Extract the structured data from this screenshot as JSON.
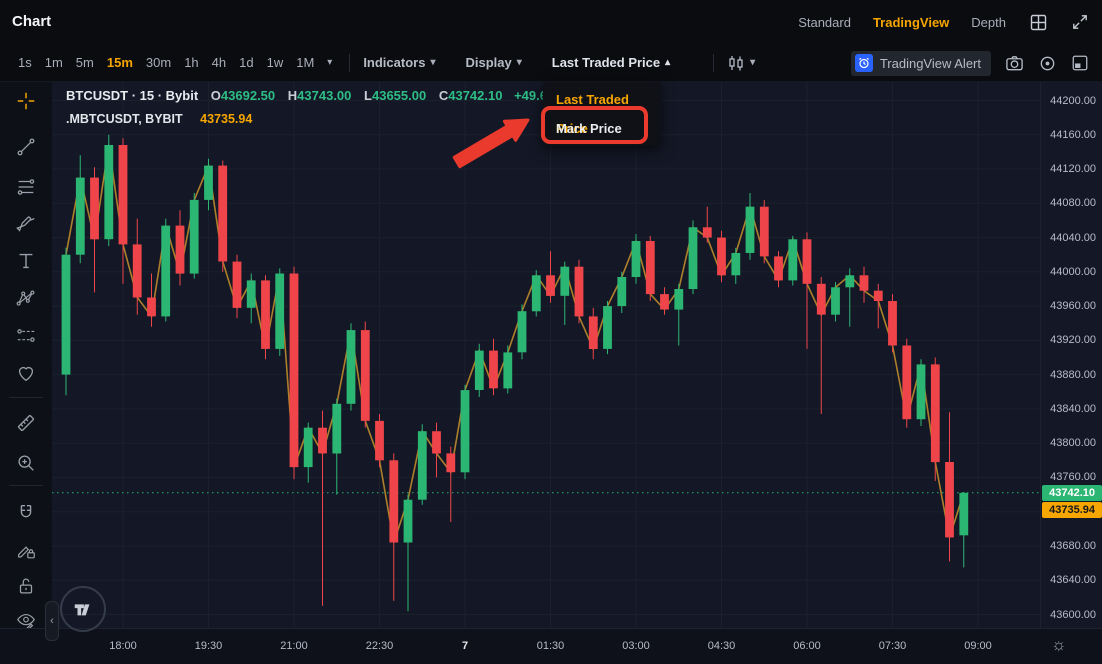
{
  "window": {
    "title": "Chart"
  },
  "top_bar": {
    "tabs": [
      {
        "label": "Standard",
        "active": false
      },
      {
        "label": "TradingView",
        "active": true
      },
      {
        "label": "Depth",
        "active": false
      }
    ],
    "icons": [
      "layout-grid-icon",
      "fullscreen-icon"
    ]
  },
  "toolbar": {
    "timeframes": [
      {
        "label": "1s",
        "active": false
      },
      {
        "label": "1m",
        "active": false
      },
      {
        "label": "5m",
        "active": false
      },
      {
        "label": "15m",
        "active": true
      },
      {
        "label": "30m",
        "active": false
      },
      {
        "label": "1h",
        "active": false
      },
      {
        "label": "4h",
        "active": false
      },
      {
        "label": "1d",
        "active": false
      },
      {
        "label": "1w",
        "active": false
      },
      {
        "label": "1M",
        "active": false
      }
    ],
    "indicators_label": "Indicators",
    "display_label": "Display",
    "price_source_label": "Last Traded Price",
    "chart_type_icon": "candles-icon",
    "alert_button_label": "TradingView Alert",
    "right_icons": [
      "camera-icon",
      "settings-target-icon",
      "popout-icon"
    ]
  },
  "price_source_menu": {
    "items": [
      {
        "label": "Last Traded Price",
        "selected": true,
        "annotated": false
      },
      {
        "label": "Mark Price",
        "selected": false,
        "annotated": true
      }
    ]
  },
  "legend": {
    "line1": {
      "symbol": "BTCUSDT · 15 · Bybit",
      "o_label": "O",
      "o": "43692.50",
      "h_label": "H",
      "h": "43743.00",
      "l_label": "L",
      "l": "43655.00",
      "c_label": "C",
      "c": "43742.10",
      "change": "+49.60 (+"
    },
    "line2": {
      "symbol": ".MBTCUSDT, BYBIT",
      "value": "43735.94"
    }
  },
  "sidebar": {
    "active_tool": "crosshair",
    "tools": [
      "crosshair",
      "trend-line",
      "fib-retracement",
      "brush",
      "text",
      "xabcd-pattern",
      "long-short-position",
      "emoji",
      "measure",
      "zoom-in",
      "magnet",
      "drawing-mode-lock",
      "lock-all-drawings",
      "hide-all-drawings"
    ]
  },
  "price_axis": {
    "ticks": [
      "44200.00",
      "44160.00",
      "44120.00",
      "44080.00",
      "44040.00",
      "44000.00",
      "43960.00",
      "43920.00",
      "43880.00",
      "43840.00",
      "43800.00",
      "43760.00",
      "43680.00",
      "43640.00",
      "43600.00"
    ],
    "last_price_label": "43742.10",
    "mark_price_label": "43735.94"
  },
  "time_axis": {
    "labels": [
      {
        "label": "18:00",
        "i": 4,
        "major": false
      },
      {
        "label": "19:30",
        "i": 10,
        "major": false
      },
      {
        "label": "21:00",
        "i": 16,
        "major": false
      },
      {
        "label": "22:30",
        "i": 22,
        "major": false
      },
      {
        "label": "7",
        "i": 28,
        "major": true
      },
      {
        "label": "01:30",
        "i": 34,
        "major": false
      },
      {
        "label": "03:00",
        "i": 40,
        "major": false
      },
      {
        "label": "04:30",
        "i": 46,
        "major": false
      },
      {
        "label": "06:00",
        "i": 52,
        "major": false
      },
      {
        "label": "07:30",
        "i": 58,
        "major": false
      },
      {
        "label": "09:00",
        "i": 64,
        "major": false
      }
    ]
  },
  "chart_data": {
    "type": "candlestick",
    "symbol": "BTCUSDT",
    "interval": "15m",
    "exchange": "Bybit",
    "title": "BTCUSDT · 15 · Bybit",
    "ylim": [
      43600,
      44200
    ],
    "y_tick_step": 40,
    "grid": true,
    "last_price": 43742.1,
    "mark_price": 43735.94,
    "legend_ohlc": {
      "open": 43692.5,
      "high": 43743.0,
      "low": 43655.0,
      "close": 43742.1,
      "change": "+49.60"
    },
    "overlay_line": {
      "name": ".MBTCUSDT mark price index",
      "value": 43735.94
    },
    "candle_format": [
      "time",
      "open",
      "high",
      "low",
      "close"
    ],
    "candles": [
      [
        "17:00",
        43880,
        44028,
        43856,
        44020
      ],
      [
        "17:15",
        44020,
        44136,
        44010,
        44110
      ],
      [
        "17:30",
        44110,
        44122,
        43976,
        44038
      ],
      [
        "17:45",
        44038,
        44160,
        44030,
        44148
      ],
      [
        "18:00",
        44148,
        44156,
        43986,
        44032
      ],
      [
        "18:15",
        44032,
        44062,
        43950,
        43970
      ],
      [
        "18:30",
        43970,
        43998,
        43936,
        43948
      ],
      [
        "18:45",
        43948,
        44062,
        43942,
        44054
      ],
      [
        "19:00",
        44054,
        44072,
        43984,
        43998
      ],
      [
        "19:15",
        43998,
        44092,
        43992,
        44084
      ],
      [
        "19:30",
        44084,
        44132,
        44072,
        44124
      ],
      [
        "19:45",
        44124,
        44130,
        44000,
        44012
      ],
      [
        "20:00",
        44012,
        44020,
        43946,
        43958
      ],
      [
        "20:15",
        43958,
        43998,
        43940,
        43990
      ],
      [
        "20:30",
        43990,
        43996,
        43898,
        43910
      ],
      [
        "20:45",
        43910,
        44004,
        43902,
        43998
      ],
      [
        "21:00",
        43998,
        44006,
        43758,
        43772
      ],
      [
        "21:15",
        43772,
        43824,
        43754,
        43818
      ],
      [
        "21:30",
        43818,
        43838,
        43610,
        43788
      ],
      [
        "21:45",
        43788,
        43852,
        43740,
        43846
      ],
      [
        "22:00",
        43846,
        43940,
        43838,
        43932
      ],
      [
        "22:15",
        43932,
        43942,
        43818,
        43826
      ],
      [
        "22:30",
        43826,
        43834,
        43772,
        43780
      ],
      [
        "22:45",
        43780,
        43788,
        43616,
        43684
      ],
      [
        "23:00",
        43684,
        43740,
        43604,
        43734
      ],
      [
        "23:15",
        43734,
        43822,
        43728,
        43814
      ],
      [
        "23:30",
        43814,
        43824,
        43760,
        43788
      ],
      [
        "23:45",
        43788,
        43796,
        43708,
        43766
      ],
      [
        "00:00",
        43766,
        43868,
        43758,
        43862
      ],
      [
        "00:15",
        43862,
        43916,
        43854,
        43908
      ],
      [
        "00:30",
        43908,
        43922,
        43856,
        43864
      ],
      [
        "00:45",
        43864,
        43914,
        43858,
        43906
      ],
      [
        "01:00",
        43906,
        43962,
        43898,
        43954
      ],
      [
        "01:15",
        43954,
        44002,
        43948,
        43996
      ],
      [
        "01:30",
        43996,
        44024,
        43964,
        43972
      ],
      [
        "01:45",
        43972,
        44012,
        43938,
        44006
      ],
      [
        "02:00",
        44006,
        44014,
        43940,
        43948
      ],
      [
        "02:15",
        43948,
        43958,
        43898,
        43910
      ],
      [
        "02:30",
        43910,
        43966,
        43904,
        43960
      ],
      [
        "02:45",
        43960,
        44000,
        43952,
        43994
      ],
      [
        "03:00",
        43994,
        44044,
        43986,
        44036
      ],
      [
        "03:15",
        44036,
        44042,
        43966,
        43974
      ],
      [
        "03:30",
        43974,
        43982,
        43950,
        43956
      ],
      [
        "03:45",
        43956,
        43986,
        43914,
        43980
      ],
      [
        "04:00",
        43980,
        44060,
        43974,
        44052
      ],
      [
        "04:15",
        44052,
        44076,
        44034,
        44040
      ],
      [
        "04:30",
        44040,
        44048,
        43988,
        43996
      ],
      [
        "04:45",
        43996,
        44028,
        43986,
        44022
      ],
      [
        "05:00",
        44022,
        44092,
        44014,
        44076
      ],
      [
        "05:15",
        44076,
        44084,
        44010,
        44018
      ],
      [
        "05:30",
        44018,
        44024,
        43982,
        43990
      ],
      [
        "05:45",
        43990,
        44042,
        43984,
        44038
      ],
      [
        "06:00",
        44038,
        44046,
        43910,
        43986
      ],
      [
        "06:15",
        43986,
        43994,
        43834,
        43950
      ],
      [
        "06:30",
        43950,
        43988,
        43942,
        43982
      ],
      [
        "06:45",
        43982,
        44004,
        43936,
        43996
      ],
      [
        "07:00",
        43996,
        44006,
        43964,
        43978
      ],
      [
        "07:15",
        43978,
        43986,
        43934,
        43966
      ],
      [
        "07:30",
        43966,
        43974,
        43906,
        43914
      ],
      [
        "07:45",
        43914,
        43922,
        43818,
        43828
      ],
      [
        "08:00",
        43828,
        43898,
        43820,
        43892
      ],
      [
        "08:15",
        43892,
        43900,
        43756,
        43778
      ],
      [
        "08:30",
        43778,
        43836,
        43662,
        43690
      ],
      [
        "08:45",
        43692.5,
        43743,
        43655,
        43742.1
      ]
    ]
  },
  "colors": {
    "up": "#2bb673",
    "down": "#ef454a",
    "accent_orange": "#f7a600",
    "mark_line": "#b5852b",
    "last_price_label_bg": "#2bb673",
    "mark_price_label_bg": "#f7a600",
    "annotation_red": "#ea3a2d",
    "alert_icon_blue": "#2962ff",
    "grid": "#1b202d",
    "chart_bg": "#141826"
  }
}
